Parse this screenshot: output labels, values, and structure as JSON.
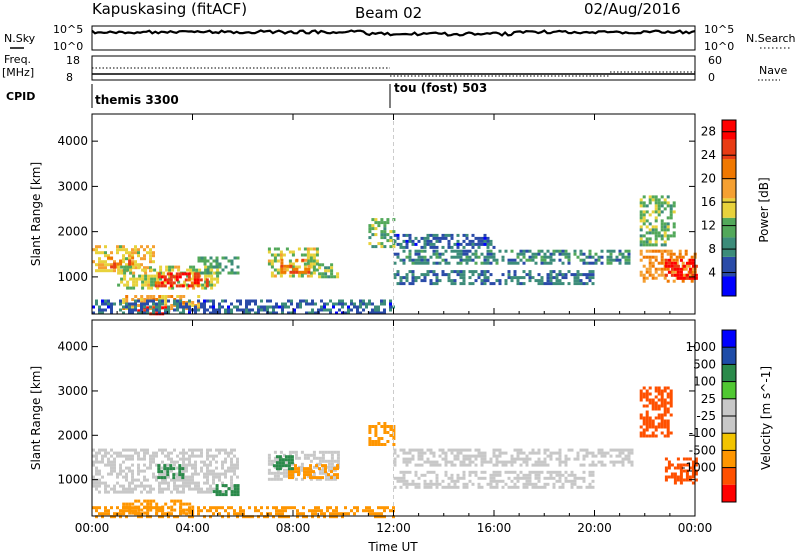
{
  "header": {
    "station": "Kapuskasing (fitACF)",
    "beam": "Beam 02",
    "date": "02/Aug/2016"
  },
  "params": {
    "nsky_label": "N.Sky",
    "nsky_ticks": [
      "10^5",
      "10^0"
    ],
    "nsearch_label": "N.Search",
    "nsearch_ticks": [
      "10^5",
      "10^0"
    ],
    "freq_label": "Freq.",
    "freq_unit": "[MHz]",
    "freq_ticks": [
      "18",
      "8"
    ],
    "nave_label": "Nave",
    "nave_ticks": [
      "60",
      "0"
    ],
    "cpid_label": "CPID",
    "cpid_segments": [
      "themis 3300",
      "tou (fost) 503"
    ]
  },
  "legend_colors": {
    "power": [
      "#0000ff",
      "#2a4ba8",
      "#3c8c7a",
      "#52a85a",
      "#e8d23c",
      "#f5a032",
      "#f07800",
      "#e83c14",
      "#ff0000"
    ],
    "velocity": [
      "#ff0000",
      "#ff5000",
      "#ff9600",
      "#f2c400",
      "#c8c8c8",
      "#c8c8c8",
      "#50c832",
      "#2a8a4a",
      "#1e4ca8",
      "#0000ff"
    ]
  },
  "chart_data": [
    {
      "type": "heatmap",
      "title": "",
      "xlabel": "Time UT",
      "ylabel": "Slant Range [km]",
      "xticks": [
        "00:00",
        "04:00",
        "08:00",
        "12:00",
        "16:00",
        "20:00",
        "00:00"
      ],
      "yticks": [
        "1000",
        "2000",
        "3000",
        "4000"
      ],
      "xlim_hours": [
        0,
        24
      ],
      "ylim": [
        180,
        4600
      ],
      "colorbar": {
        "label": "Power [dB]",
        "ticks": [
          "4",
          "8",
          "12",
          "16",
          "20",
          "24",
          "28"
        ],
        "range": [
          0,
          30
        ]
      },
      "regions": [
        {
          "t0": 0.0,
          "t1": 2.5,
          "r0": 1150,
          "r1": 1700,
          "value": 16
        },
        {
          "t0": 0.6,
          "t1": 1.6,
          "r0": 1200,
          "r1": 1450,
          "value": 24
        },
        {
          "t0": 1.0,
          "t1": 5.0,
          "r0": 750,
          "r1": 1250,
          "value": 14
        },
        {
          "t0": 2.5,
          "t1": 4.6,
          "r0": 800,
          "r1": 1100,
          "value": 26
        },
        {
          "t0": 4.2,
          "t1": 5.8,
          "r0": 1100,
          "r1": 1450,
          "value": 10
        },
        {
          "t0": 1.2,
          "t1": 4.2,
          "r0": 300,
          "r1": 600,
          "value": 18
        },
        {
          "t0": 1.8,
          "t1": 3.0,
          "r0": 200,
          "r1": 350,
          "value": 27
        },
        {
          "t0": 7.0,
          "t1": 9.0,
          "r0": 1000,
          "r1": 1650,
          "value": 14
        },
        {
          "t0": 7.5,
          "t1": 8.6,
          "r0": 1100,
          "r1": 1400,
          "value": 22
        },
        {
          "t0": 9.0,
          "t1": 9.8,
          "r0": 1000,
          "r1": 1300,
          "value": 12
        },
        {
          "t0": 11.0,
          "t1": 12.0,
          "r0": 1700,
          "r1": 2300,
          "value": 12
        },
        {
          "t0": 12.0,
          "t1": 21.5,
          "r0": 1300,
          "r1": 1600,
          "value": 8
        },
        {
          "t0": 12.0,
          "t1": 20.0,
          "r0": 850,
          "r1": 1150,
          "value": 7
        },
        {
          "t0": 12.0,
          "t1": 16.0,
          "r0": 1650,
          "r1": 1950,
          "value": 6
        },
        {
          "t0": 21.8,
          "t1": 24.0,
          "r0": 900,
          "r1": 1600,
          "value": 20
        },
        {
          "t0": 22.8,
          "t1": 24.0,
          "r0": 950,
          "r1": 1400,
          "value": 28
        },
        {
          "t0": 21.8,
          "t1": 23.2,
          "r0": 1700,
          "r1": 2800,
          "value": 12
        },
        {
          "t0": 0.0,
          "t1": 12.0,
          "r0": 180,
          "r1": 500,
          "value": 6
        }
      ]
    },
    {
      "type": "heatmap",
      "title": "",
      "xlabel": "Time UT",
      "ylabel": "Slant Range [km]",
      "xticks": [
        "00:00",
        "04:00",
        "08:00",
        "12:00",
        "16:00",
        "20:00",
        "00:00"
      ],
      "yticks": [
        "1000",
        "2000",
        "3000",
        "4000"
      ],
      "xlim_hours": [
        0,
        24
      ],
      "ylim": [
        180,
        4600
      ],
      "colorbar": {
        "label": "Velocity [m s^-1]",
        "ticks": [
          "1000",
          "500",
          "100",
          "25",
          "-25",
          "-100",
          "-500",
          "-1000"
        ]
      },
      "regions": [
        {
          "t0": 0.0,
          "t1": 5.8,
          "r0": 750,
          "r1": 1700,
          "value": 0
        },
        {
          "t0": 2.6,
          "t1": 3.6,
          "r0": 1050,
          "r1": 1350,
          "value": 150
        },
        {
          "t0": 4.8,
          "t1": 5.8,
          "r0": 650,
          "r1": 900,
          "value": 150
        },
        {
          "t0": 1.2,
          "t1": 4.0,
          "r0": 250,
          "r1": 550,
          "value": -300
        },
        {
          "t0": 7.0,
          "t1": 9.8,
          "r0": 1000,
          "r1": 1650,
          "value": 0
        },
        {
          "t0": 7.8,
          "t1": 9.8,
          "r0": 1050,
          "r1": 1350,
          "value": -300
        },
        {
          "t0": 7.2,
          "t1": 8.0,
          "r0": 1250,
          "r1": 1550,
          "value": 150
        },
        {
          "t0": 11.0,
          "t1": 12.0,
          "r0": 1800,
          "r1": 2300,
          "value": -200
        },
        {
          "t0": 12.0,
          "t1": 21.5,
          "r0": 1300,
          "r1": 1700,
          "value": 0
        },
        {
          "t0": 12.0,
          "t1": 20.0,
          "r0": 800,
          "r1": 1200,
          "value": 0
        },
        {
          "t0": 21.8,
          "t1": 23.0,
          "r0": 2000,
          "r1": 3100,
          "value": -800
        },
        {
          "t0": 22.8,
          "t1": 24.0,
          "r0": 900,
          "r1": 1500,
          "value": -700
        },
        {
          "t0": 0.0,
          "t1": 12.0,
          "r0": 180,
          "r1": 400,
          "value": -150
        }
      ]
    }
  ]
}
